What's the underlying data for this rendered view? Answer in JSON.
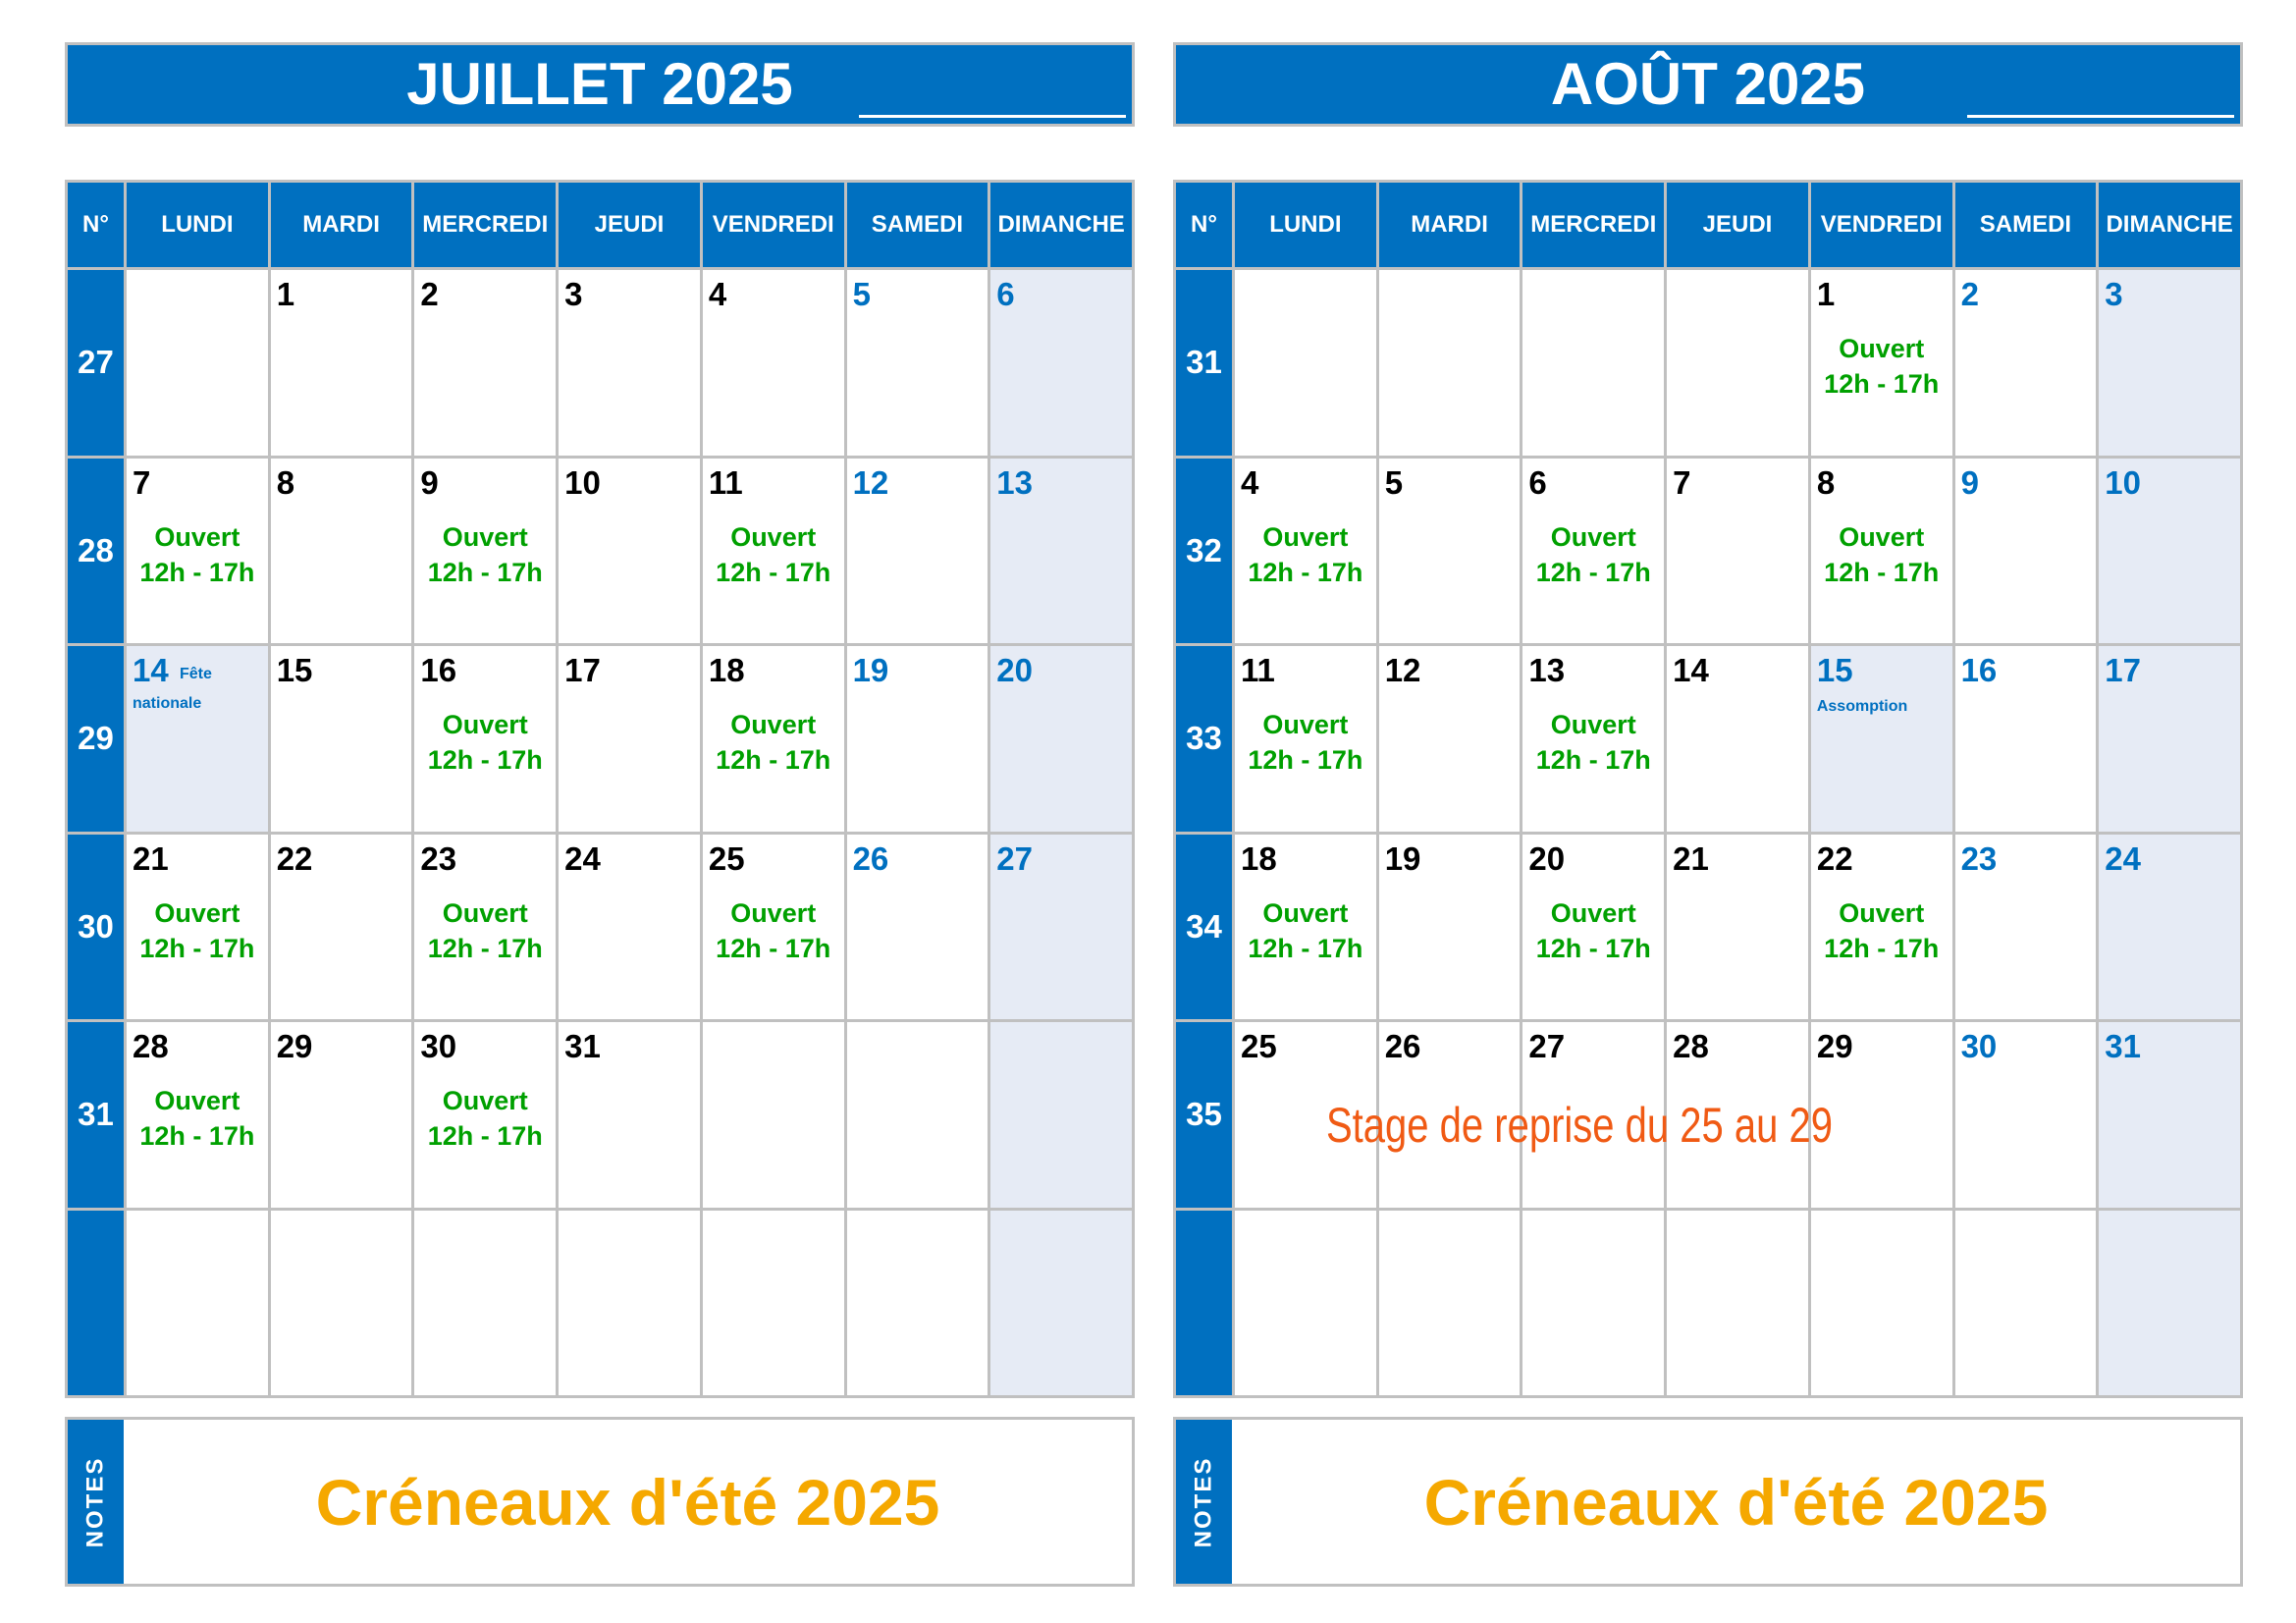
{
  "labels": {
    "week_header": "N°",
    "days": [
      "LUNDI",
      "MARDI",
      "MERCREDI",
      "JEUDI",
      "VENDREDI",
      "SAMEDI",
      "DIMANCHE"
    ],
    "open_line1": "Ouvert",
    "open_line2": "12h - 17h",
    "notes": "NOTES"
  },
  "colors": {
    "header": "#0070c0",
    "weekend": "#0070c0",
    "open": "#00a000",
    "sunday_bg": "#e6ebf5",
    "notes_text": "#f5a800",
    "stage_text": "#f05a14"
  },
  "months": [
    {
      "title": "JUILLET 2025",
      "notes_text": "Créneaux d'été 2025",
      "weeks": [
        {
          "num": "27",
          "days": [
            null,
            {
              "d": "1"
            },
            {
              "d": "2"
            },
            {
              "d": "3"
            },
            {
              "d": "4"
            },
            {
              "d": "5"
            },
            {
              "d": "6"
            }
          ]
        },
        {
          "num": "28",
          "days": [
            {
              "d": "7",
              "open": true
            },
            {
              "d": "8"
            },
            {
              "d": "9",
              "open": true
            },
            {
              "d": "10"
            },
            {
              "d": "11",
              "open": true
            },
            {
              "d": "12"
            },
            {
              "d": "13"
            }
          ]
        },
        {
          "num": "29",
          "days": [
            {
              "d": "14",
              "holiday": "Fête nationale"
            },
            {
              "d": "15"
            },
            {
              "d": "16",
              "open": true
            },
            {
              "d": "17"
            },
            {
              "d": "18",
              "open": true
            },
            {
              "d": "19"
            },
            {
              "d": "20"
            }
          ]
        },
        {
          "num": "30",
          "days": [
            {
              "d": "21",
              "open": true
            },
            {
              "d": "22"
            },
            {
              "d": "23",
              "open": true
            },
            {
              "d": "24"
            },
            {
              "d": "25",
              "open": true
            },
            {
              "d": "26"
            },
            {
              "d": "27"
            }
          ]
        },
        {
          "num": "31",
          "days": [
            {
              "d": "28",
              "open": true
            },
            {
              "d": "29"
            },
            {
              "d": "30",
              "open": true
            },
            {
              "d": "31"
            },
            null,
            null,
            null
          ]
        },
        {
          "num": "",
          "days": [
            null,
            null,
            null,
            null,
            null,
            null,
            null
          ]
        }
      ]
    },
    {
      "title": "AOÛT 2025",
      "notes_text": "Créneaux d'été 2025",
      "stage": "Stage de reprise du 25 au 29",
      "weeks": [
        {
          "num": "31",
          "days": [
            null,
            null,
            null,
            null,
            {
              "d": "1",
              "open": true
            },
            {
              "d": "2"
            },
            {
              "d": "3"
            }
          ]
        },
        {
          "num": "32",
          "days": [
            {
              "d": "4",
              "open": true
            },
            {
              "d": "5"
            },
            {
              "d": "6",
              "open": true
            },
            {
              "d": "7"
            },
            {
              "d": "8",
              "open": true
            },
            {
              "d": "9"
            },
            {
              "d": "10"
            }
          ]
        },
        {
          "num": "33",
          "days": [
            {
              "d": "11",
              "open": true
            },
            {
              "d": "12"
            },
            {
              "d": "13",
              "open": true
            },
            {
              "d": "14"
            },
            {
              "d": "15",
              "holiday": "Assomption"
            },
            {
              "d": "16"
            },
            {
              "d": "17"
            }
          ]
        },
        {
          "num": "34",
          "days": [
            {
              "d": "18",
              "open": true
            },
            {
              "d": "19"
            },
            {
              "d": "20",
              "open": true
            },
            {
              "d": "21"
            },
            {
              "d": "22",
              "open": true
            },
            {
              "d": "23"
            },
            {
              "d": "24"
            }
          ]
        },
        {
          "num": "35",
          "days": [
            {
              "d": "25"
            },
            {
              "d": "26"
            },
            {
              "d": "27"
            },
            {
              "d": "28"
            },
            {
              "d": "29"
            },
            {
              "d": "30"
            },
            {
              "d": "31"
            }
          ]
        },
        {
          "num": "",
          "days": [
            null,
            null,
            null,
            null,
            null,
            null,
            null
          ]
        }
      ]
    }
  ]
}
